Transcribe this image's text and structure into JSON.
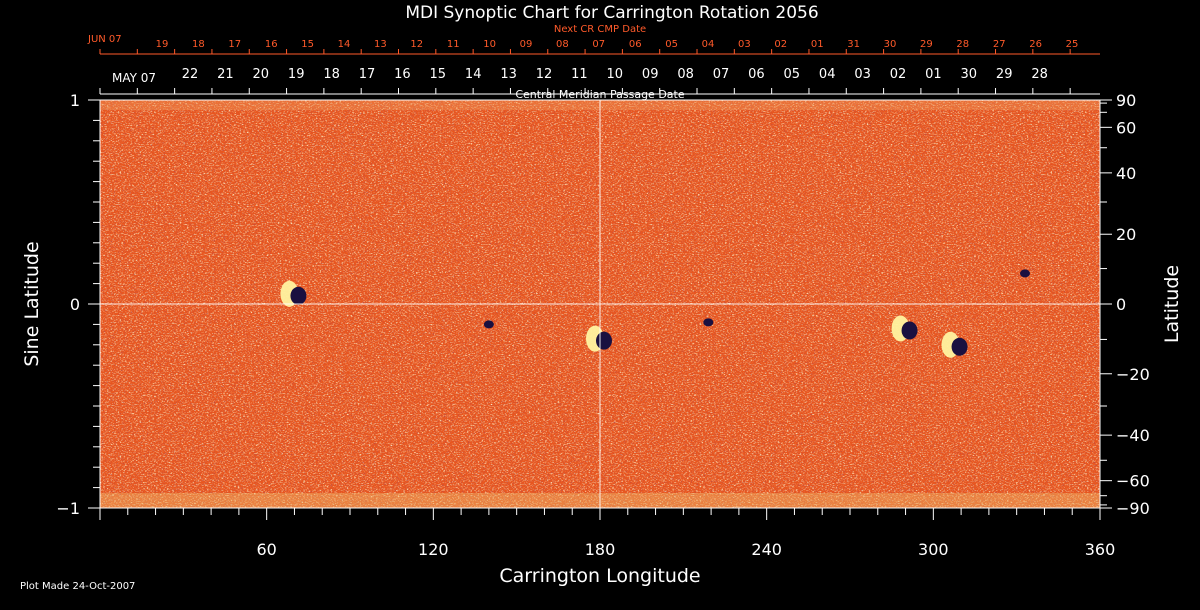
{
  "chart_data": {
    "type": "heatmap",
    "title": "MDI Synoptic Chart for Carrington Rotation 2056",
    "xlabel": "Carrington Longitude",
    "ylabel_left": "Sine Latitude",
    "ylabel_right": "Latitude",
    "xlim": [
      0,
      360
    ],
    "ylim": [
      -1,
      1
    ],
    "x_ticks": [
      60,
      120,
      180,
      240,
      300,
      360
    ],
    "y_ticks_left": [
      {
        "v": 1,
        "label": "1"
      },
      {
        "v": 0,
        "label": "0"
      },
      {
        "v": -1,
        "label": "−1"
      }
    ],
    "y_ticks_right": [
      {
        "deg": 90,
        "label": "90"
      },
      {
        "deg": 60,
        "label": "60"
      },
      {
        "deg": 40,
        "label": "40"
      },
      {
        "deg": 20,
        "label": "20"
      },
      {
        "deg": 0,
        "label": "0"
      },
      {
        "deg": -20,
        "label": "−20"
      },
      {
        "deg": -40,
        "label": "−40"
      },
      {
        "deg": -60,
        "label": "−60"
      },
      {
        "deg": -90,
        "label": "−90"
      }
    ],
    "cmp_axis_label": "Central Meridian Passage Date",
    "cmp_start_label": "MAY 07",
    "cmp_dates": [
      "22",
      "21",
      "20",
      "19",
      "18",
      "17",
      "16",
      "15",
      "14",
      "13",
      "12",
      "11",
      "10",
      "09",
      "08",
      "07",
      "06",
      "05",
      "04",
      "03",
      "02",
      "01",
      "30",
      "29",
      "28"
    ],
    "next_cmp_label": "Next CR CMP Date",
    "next_start_label": "JUN 07",
    "next_dates": [
      "19",
      "18",
      "17",
      "16",
      "15",
      "14",
      "13",
      "12",
      "11",
      "10",
      "09",
      "08",
      "07",
      "06",
      "05",
      "04",
      "03",
      "02",
      "01",
      "31",
      "30",
      "29",
      "28",
      "27",
      "26",
      "25"
    ],
    "grid_lines": {
      "longitude": 180,
      "sine_latitude": 0
    },
    "active_regions": [
      {
        "lon": 70,
        "sinlat": 0.05,
        "polarity": "mixed"
      },
      {
        "lon": 140,
        "sinlat": -0.1,
        "polarity": "negative"
      },
      {
        "lon": 180,
        "sinlat": -0.17,
        "polarity": "mixed"
      },
      {
        "lon": 219,
        "sinlat": -0.09,
        "polarity": "negative"
      },
      {
        "lon": 290,
        "sinlat": -0.12,
        "polarity": "mixed"
      },
      {
        "lon": 308,
        "sinlat": -0.2,
        "polarity": "mixed"
      },
      {
        "lon": 333,
        "sinlat": 0.15,
        "polarity": "negative"
      }
    ],
    "colors": {
      "background": "#e8561f",
      "positive": "#fff3a0",
      "negative": "#1a1040",
      "axes": "#ffffff",
      "date_labels": "#ff5a2a"
    }
  },
  "footer": {
    "plot_made": "Plot Made 24-Oct-2007"
  }
}
